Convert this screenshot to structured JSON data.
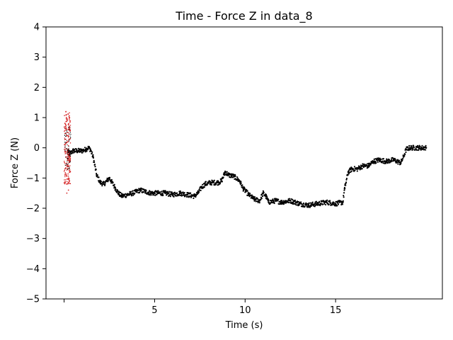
{
  "chart_data": {
    "type": "scatter",
    "title": "Time - Force Z in data_8",
    "xlabel": "Time (s)",
    "ylabel": "Force Z (N)",
    "xlim": [
      -1.0,
      20.9
    ],
    "ylim": [
      -5,
      4
    ],
    "xticks": [
      5,
      10,
      15
    ],
    "xtick_labels": [
      "5",
      "10",
      "15"
    ],
    "yticks": [
      -5,
      -4,
      -3,
      -2,
      -1,
      0,
      1,
      2,
      3,
      4
    ],
    "ytick_labels": [
      "−5",
      "−4",
      "−3",
      "−2",
      "−1",
      "0",
      "1",
      "2",
      "3",
      "4"
    ],
    "grid": false,
    "colors": {
      "main": "#000000",
      "highlight": "#d62728"
    },
    "series": [
      {
        "color": "#000000",
        "band": 0.08,
        "points": [
          [
            0.2,
            -0.1
          ],
          [
            0.3,
            -0.2
          ],
          [
            0.5,
            -0.1
          ],
          [
            0.7,
            -0.1
          ],
          [
            1.0,
            -0.1
          ],
          [
            1.2,
            -0.05
          ],
          [
            1.35,
            0.0
          ],
          [
            1.45,
            -0.05
          ],
          [
            1.6,
            -0.3
          ],
          [
            1.8,
            -0.9
          ],
          [
            2.0,
            -1.15
          ],
          [
            2.2,
            -1.2
          ],
          [
            2.35,
            -1.1
          ],
          [
            2.5,
            -1.0
          ],
          [
            2.6,
            -1.1
          ],
          [
            2.8,
            -1.3
          ],
          [
            3.0,
            -1.5
          ],
          [
            3.2,
            -1.6
          ],
          [
            3.5,
            -1.55
          ],
          [
            3.8,
            -1.5
          ],
          [
            4.2,
            -1.4
          ],
          [
            4.5,
            -1.45
          ],
          [
            4.8,
            -1.5
          ],
          [
            5.2,
            -1.5
          ],
          [
            5.6,
            -1.5
          ],
          [
            6.0,
            -1.55
          ],
          [
            6.4,
            -1.5
          ],
          [
            6.8,
            -1.55
          ],
          [
            7.2,
            -1.6
          ],
          [
            7.4,
            -1.5
          ],
          [
            7.6,
            -1.3
          ],
          [
            7.8,
            -1.2
          ],
          [
            8.1,
            -1.15
          ],
          [
            8.5,
            -1.15
          ],
          [
            8.7,
            -1.1
          ],
          [
            8.9,
            -0.8
          ],
          [
            9.1,
            -0.9
          ],
          [
            9.4,
            -0.95
          ],
          [
            9.7,
            -1.1
          ],
          [
            9.9,
            -1.35
          ],
          [
            10.2,
            -1.55
          ],
          [
            10.5,
            -1.7
          ],
          [
            10.8,
            -1.75
          ],
          [
            11.0,
            -1.5
          ],
          [
            11.15,
            -1.6
          ],
          [
            11.3,
            -1.8
          ],
          [
            11.7,
            -1.75
          ],
          [
            12.0,
            -1.8
          ],
          [
            12.5,
            -1.75
          ],
          [
            13.0,
            -1.85
          ],
          [
            13.5,
            -1.9
          ],
          [
            14.0,
            -1.85
          ],
          [
            14.5,
            -1.8
          ],
          [
            15.0,
            -1.85
          ],
          [
            15.4,
            -1.8
          ],
          [
            15.5,
            -1.35
          ],
          [
            15.7,
            -0.8
          ],
          [
            15.9,
            -0.7
          ],
          [
            16.2,
            -0.7
          ],
          [
            16.5,
            -0.6
          ],
          [
            16.8,
            -0.6
          ],
          [
            17.1,
            -0.45
          ],
          [
            17.4,
            -0.4
          ],
          [
            17.8,
            -0.45
          ],
          [
            18.2,
            -0.4
          ],
          [
            18.6,
            -0.5
          ],
          [
            18.75,
            -0.3
          ],
          [
            18.9,
            -0.05
          ],
          [
            19.1,
            0.0
          ],
          [
            19.6,
            0.0
          ],
          [
            20.0,
            0.0
          ]
        ]
      },
      {
        "color": "#d62728",
        "points": [
          [
            0.02,
            0.1
          ],
          [
            0.05,
            -0.9
          ],
          [
            0.08,
            0.7
          ],
          [
            0.1,
            -0.3
          ],
          [
            0.12,
            1.1
          ],
          [
            0.14,
            -1.2
          ],
          [
            0.16,
            0.4
          ],
          [
            0.18,
            0.9
          ],
          [
            0.2,
            -0.7
          ],
          [
            0.22,
            0.2
          ],
          [
            0.24,
            -1.4
          ],
          [
            0.26,
            0.6
          ],
          [
            0.28,
            -0.2
          ],
          [
            0.3,
            1.0
          ],
          [
            0.32,
            -0.8
          ],
          [
            0.34,
            0.3
          ],
          [
            0.1,
            1.2
          ],
          [
            0.15,
            -1.5
          ],
          [
            0.25,
            0.8
          ],
          [
            0.3,
            -1.1
          ]
        ]
      }
    ]
  }
}
